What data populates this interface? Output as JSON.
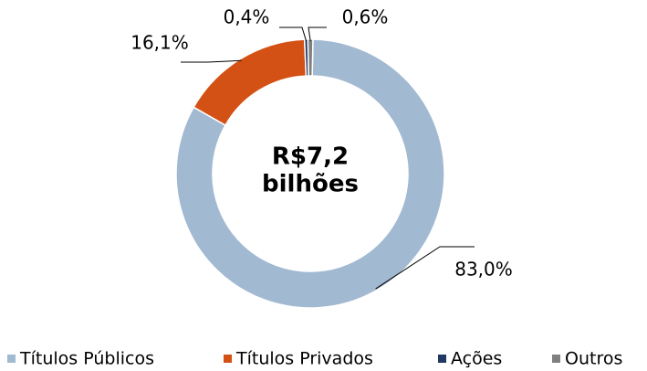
{
  "chart_data": {
    "type": "donut",
    "center_text": [
      "R$7,2",
      "bilhões"
    ],
    "categories": [
      "Títulos Públicos",
      "Títulos Privados",
      "Ações",
      "Outros"
    ],
    "values": [
      83.0,
      16.1,
      0.4,
      0.6
    ],
    "value_labels": [
      "83,0%",
      "16,1%",
      "0,4%",
      "0,6%"
    ],
    "colors": [
      "#a2b9d2",
      "#d35114",
      "#1f3864",
      "#808080"
    ],
    "legend": "bottom"
  }
}
